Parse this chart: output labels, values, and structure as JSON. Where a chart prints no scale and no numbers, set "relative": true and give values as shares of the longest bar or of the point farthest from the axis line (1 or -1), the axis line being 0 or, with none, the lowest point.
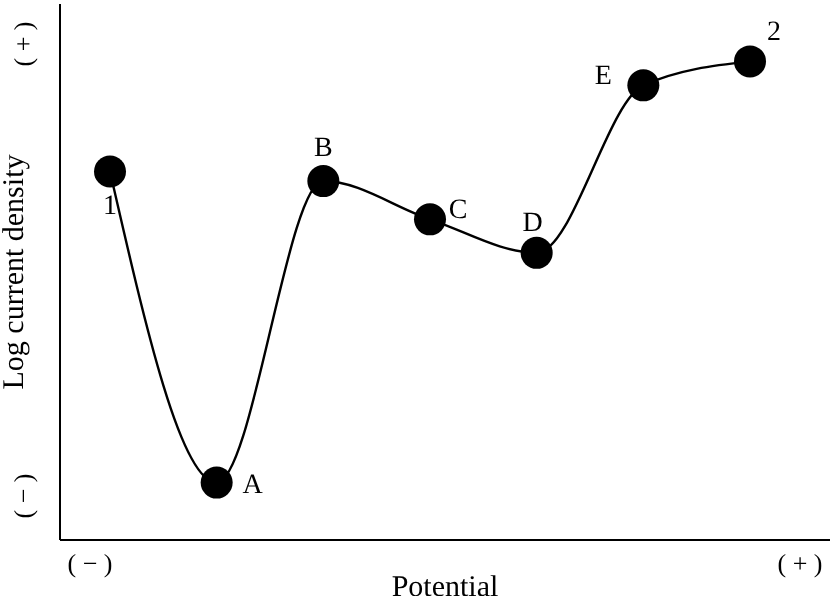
{
  "chart_data": {
    "type": "line",
    "xlabel": "Potential",
    "ylabel": "Log current density",
    "relative": true,
    "categories": [
      null,
      null,
      null,
      null,
      null,
      null,
      null
    ],
    "values": [
      0.77,
      0.12,
      0.75,
      0.67,
      0.6,
      0.95,
      1
    ],
    "color": "#000000",
    "marker": "circle",
    "line_style": "solid",
    "annotations": [
      "1",
      "A",
      "B",
      "C",
      "D",
      "E",
      "2",
      "( − )",
      "( + )",
      "( − )",
      "( + )"
    ]
  }
}
